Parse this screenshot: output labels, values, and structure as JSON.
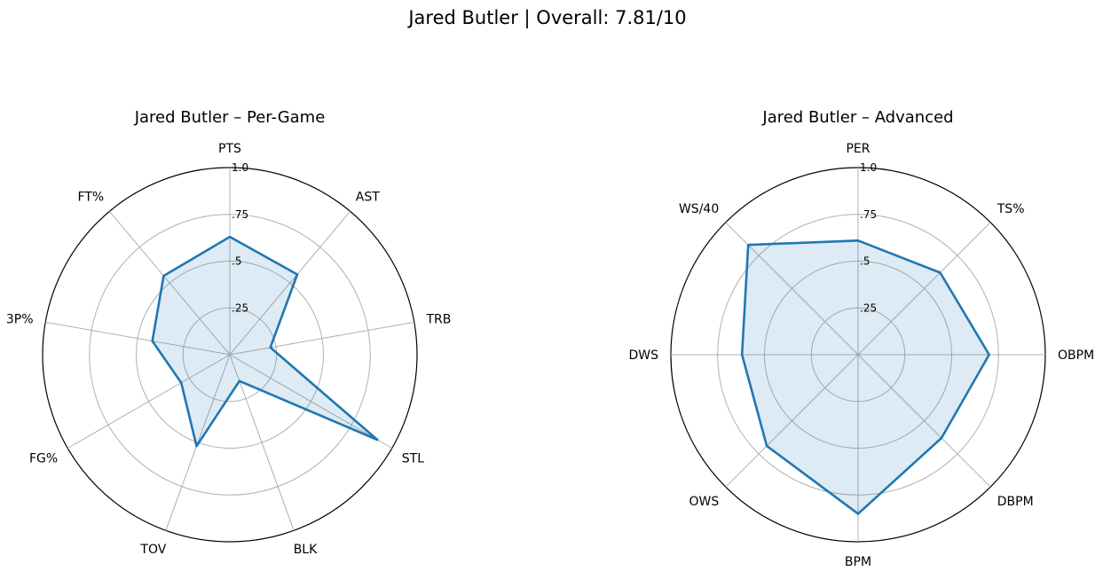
{
  "title": "Jared Butler | Overall: 7.81/10",
  "style": {
    "line_color": "#1f77b4",
    "fill_color": "#1f77b4",
    "grid_color": "#b0b0b0"
  },
  "chart_data": [
    {
      "type": "radar",
      "title": "Jared Butler – Per-Game",
      "categories": [
        "PTS",
        "AST",
        "TRB",
        "STL",
        "BLK",
        "TOV",
        "FG%",
        "3P%",
        "FT%"
      ],
      "values": [
        0.63,
        0.56,
        0.22,
        0.91,
        0.15,
        0.52,
        0.3,
        0.42,
        0.55
      ],
      "rlim": [
        0,
        1.0
      ],
      "rticks": [
        0.25,
        0.5,
        0.75,
        1.0
      ],
      "rtick_labels": [
        ".25",
        ".5",
        ".75",
        "1.0"
      ],
      "grid": true
    },
    {
      "type": "radar",
      "title": "Jared Butler – Advanced",
      "categories": [
        "PER",
        "TS%",
        "OBPM",
        "DBPM",
        "BPM",
        "OWS",
        "DWS",
        "WS/40"
      ],
      "values": [
        0.61,
        0.62,
        0.7,
        0.63,
        0.85,
        0.69,
        0.62,
        0.83
      ],
      "rlim": [
        0,
        1.0
      ],
      "rticks": [
        0.25,
        0.5,
        0.75,
        1.0
      ],
      "rtick_labels": [
        ".25",
        ".5",
        ".75",
        "1.0"
      ],
      "grid": true
    }
  ]
}
